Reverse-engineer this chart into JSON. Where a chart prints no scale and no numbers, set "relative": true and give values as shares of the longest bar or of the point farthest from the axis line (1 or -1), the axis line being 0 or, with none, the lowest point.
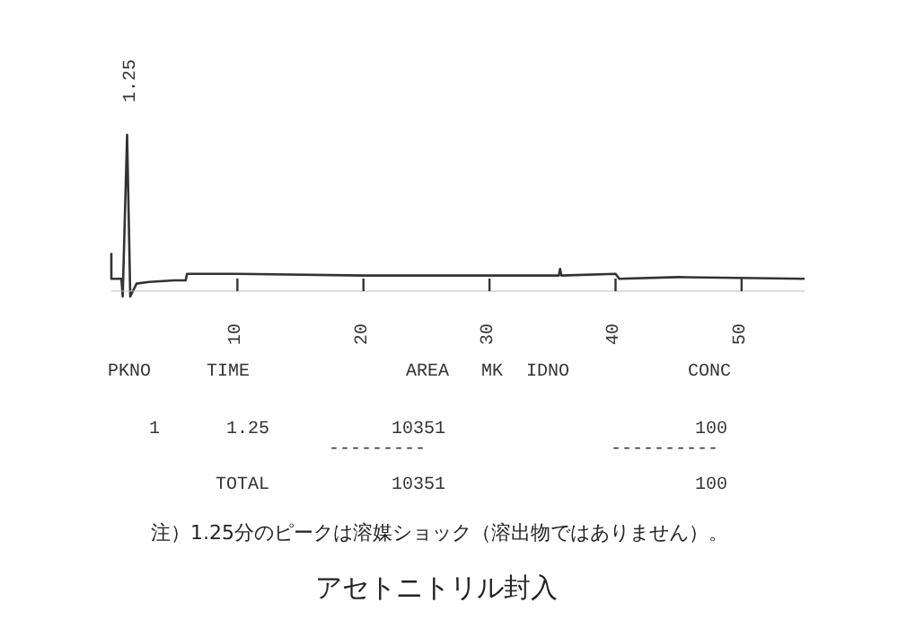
{
  "chart_data": {
    "type": "line",
    "title": "アセトニトリル封入",
    "relative": true,
    "tick_labels": "x",
    "marker": "none",
    "line_style": "solid",
    "xlim": [
      0,
      55
    ],
    "xticks": [
      10,
      20,
      30,
      40,
      50
    ],
    "series": [
      {
        "color": "#333333",
        "x": [
          0,
          0,
          0.8,
          0.9,
          1.25,
          1.5,
          2,
          3,
          5,
          5.9,
          6,
          10,
          20,
          30,
          35.5,
          35.6,
          35.7,
          40,
          40.3,
          45,
          55
        ],
        "values": [
          0.27,
          0.11,
          0.11,
          0,
          1,
          0,
          0.08,
          0.09,
          0.1,
          0.1,
          0.14,
          0.14,
          0.13,
          0.13,
          0.13,
          0.17,
          0.13,
          0.14,
          0.11,
          0.12,
          0.11
        ]
      }
    ],
    "annotations": [
      {
        "text": "1.25",
        "x": 1.25,
        "y": 1
      },
      "PKNO",
      "TIME",
      "AREA",
      "MK",
      "IDNO",
      "CONC",
      "1",
      "1.25",
      "10351",
      "100",
      "---------",
      "----------",
      "TOTAL",
      "10351",
      "100",
      "注）1.25分のピークは溶媒ショック（溶出物ではありません）。"
    ]
  }
}
